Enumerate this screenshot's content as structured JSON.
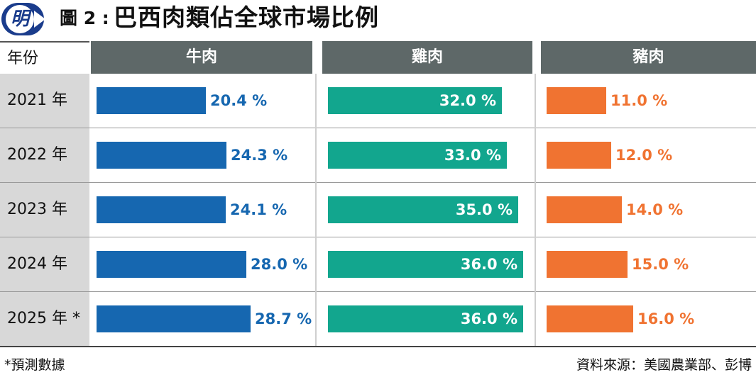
{
  "header": {
    "logo_char": "明",
    "figure_label": "圖 2 :",
    "title": "巴西肉類佔全球市場比例"
  },
  "colors": {
    "beef": "#1667b0",
    "chicken": "#12a68e",
    "pork": "#f07331",
    "header_bg": "#5e6868",
    "year_band": "#d8d8d8",
    "logo": "#1a3c8c"
  },
  "chart_data": {
    "type": "bar",
    "orientation": "horizontal",
    "title": "巴西肉類佔全球市場比例",
    "row_header": "年份",
    "categories": [
      "2021 年",
      "2022 年",
      "2023 年",
      "2024 年",
      "2025 年 *"
    ],
    "series": [
      {
        "name": "牛肉",
        "values": [
          20.4,
          24.3,
          24.1,
          28.0,
          28.7
        ],
        "labels": [
          "20.4 %",
          "24.3 %",
          "24.1 %",
          "28.0 %",
          "28.7 %"
        ],
        "color": "#1667b0"
      },
      {
        "name": "雞肉",
        "values": [
          32.0,
          33.0,
          35.0,
          36.0,
          36.0
        ],
        "labels": [
          "32.0 %",
          "33.0 %",
          "35.0 %",
          "36.0 %",
          "36.0 %"
        ],
        "color": "#12a68e"
      },
      {
        "name": "豬肉",
        "values": [
          11.0,
          12.0,
          14.0,
          15.0,
          16.0
        ],
        "labels": [
          "11.0 %",
          "12.0 %",
          "14.0 %",
          "15.0 %",
          "16.0 %"
        ],
        "color": "#f07331"
      }
    ]
  },
  "footer": {
    "note": "*預測數據",
    "source": "資料來源：美國農業部、彭博"
  }
}
